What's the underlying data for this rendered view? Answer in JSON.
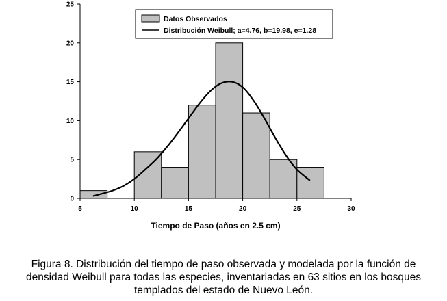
{
  "chart_data": {
    "type": "bar",
    "subtype": "histogram-with-fitted-curve",
    "title": "",
    "xlabel": "Tiempo de Paso (años en 2.5 cm)",
    "ylabel": "",
    "xlim": [
      5,
      30
    ],
    "ylim": [
      0,
      25
    ],
    "xticks": [
      5,
      10,
      15,
      20,
      25,
      30
    ],
    "yticks": [
      0,
      5,
      10,
      15,
      20,
      25
    ],
    "grid": false,
    "legend_position": "top-center",
    "bins": [
      {
        "start": 5.0,
        "end": 7.5,
        "value": 1
      },
      {
        "start": 10.0,
        "end": 12.5,
        "value": 6
      },
      {
        "start": 12.5,
        "end": 15.0,
        "value": 4
      },
      {
        "start": 15.0,
        "end": 17.5,
        "value": 12
      },
      {
        "start": 17.5,
        "end": 20.0,
        "value": 20
      },
      {
        "start": 20.0,
        "end": 22.5,
        "value": 11
      },
      {
        "start": 22.5,
        "end": 25.0,
        "value": 5
      },
      {
        "start": 25.0,
        "end": 27.5,
        "value": 4
      }
    ],
    "series": [
      {
        "name": "Datos Observados",
        "kind": "histogram",
        "color": "#c0c0c0"
      },
      {
        "name": "Distribución Weibull; a=4.76, b=19.98, e=1.28",
        "kind": "line",
        "color": "#000000",
        "x": [
          6.2,
          7.0,
          8.0,
          9.0,
          10.0,
          11.0,
          12.0,
          13.0,
          14.0,
          15.0,
          16.0,
          17.0,
          18.0,
          19.0,
          20.0,
          21.0,
          22.0,
          23.0,
          24.0,
          25.0,
          26.2
        ],
        "y": [
          0.3,
          0.6,
          1.0,
          1.6,
          2.5,
          3.7,
          5.0,
          6.6,
          8.4,
          10.3,
          12.2,
          13.8,
          14.8,
          15.0,
          14.3,
          12.6,
          10.3,
          7.8,
          5.5,
          3.7,
          2.3
        ]
      }
    ]
  },
  "caption": {
    "line1": "Figura 8. Distribución del tiempo de paso observada y modelada por la función de",
    "line2": "densidad Weibull para todas las especies, inventariadas en 63 sitios en los bosques",
    "line3": "templados del estado de Nuevo León."
  }
}
